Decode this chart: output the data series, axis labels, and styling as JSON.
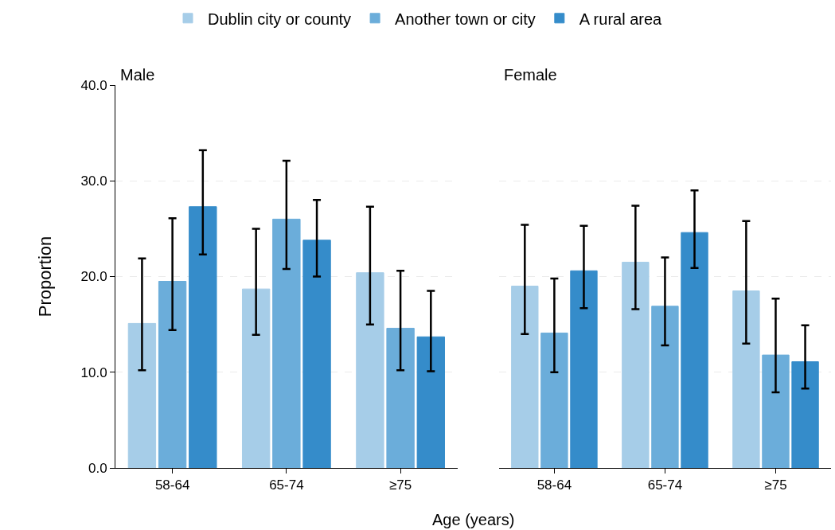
{
  "chart_data": [
    {
      "type": "bar",
      "title": "Male",
      "xlabel": "Age (years)",
      "ylabel": "Proportion",
      "categories": [
        "58-64",
        "65-74",
        "≥75"
      ],
      "ylim": [
        0,
        40
      ],
      "yticks": [
        {
          "value": 0,
          "label": "0.0"
        },
        {
          "value": 10,
          "label": "10.0"
        },
        {
          "value": 20,
          "label": "20.0"
        },
        {
          "value": 30,
          "label": "30.0"
        },
        {
          "value": 40,
          "label": "40.0"
        }
      ],
      "grid": "y",
      "legend": "top",
      "series": [
        {
          "name": "Dublin city or county",
          "color": "#a6cde8",
          "values": [
            15.1,
            18.7,
            20.4
          ],
          "errors": [
            [
              10.2,
              21.9
            ],
            [
              13.9,
              25.0
            ],
            [
              15.0,
              27.3
            ]
          ]
        },
        {
          "name": "Another town or city",
          "color": "#6badda",
          "values": [
            19.5,
            26.0,
            14.6
          ],
          "errors": [
            [
              14.4,
              26.1
            ],
            [
              20.8,
              32.1
            ],
            [
              10.2,
              20.6
            ]
          ]
        },
        {
          "name": "A rural area",
          "color": "#358cca",
          "values": [
            27.3,
            23.8,
            13.7
          ],
          "errors": [
            [
              22.3,
              33.2
            ],
            [
              20.0,
              28.0
            ],
            [
              10.1,
              18.5
            ]
          ]
        }
      ]
    },
    {
      "type": "bar",
      "title": "Female",
      "categories": [
        "58-64",
        "65-74",
        "≥75"
      ],
      "ylim": [
        0,
        40
      ],
      "yticks": [
        {
          "value": 0,
          "label": null
        },
        {
          "value": 10,
          "label": null
        },
        {
          "value": 20,
          "label": null
        },
        {
          "value": 30,
          "label": null
        },
        {
          "value": 40,
          "label": null
        }
      ],
      "grid": "y",
      "tick_labels": "x",
      "series": [
        {
          "color": "#a6cde8",
          "values": [
            19.0,
            21.5,
            18.5
          ],
          "errors": [
            [
              14.0,
              25.4
            ],
            [
              16.6,
              27.4
            ],
            [
              13.0,
              25.8
            ]
          ]
        },
        {
          "color": "#6badda",
          "values": [
            14.1,
            16.9,
            11.8
          ],
          "errors": [
            [
              10.0,
              19.8
            ],
            [
              12.8,
              22.0
            ],
            [
              7.9,
              17.7
            ]
          ]
        },
        {
          "color": "#358cca",
          "values": [
            20.6,
            24.6,
            11.1
          ],
          "errors": [
            [
              16.7,
              25.3
            ],
            [
              20.9,
              29.0
            ],
            [
              8.3,
              14.9
            ]
          ]
        }
      ]
    }
  ]
}
